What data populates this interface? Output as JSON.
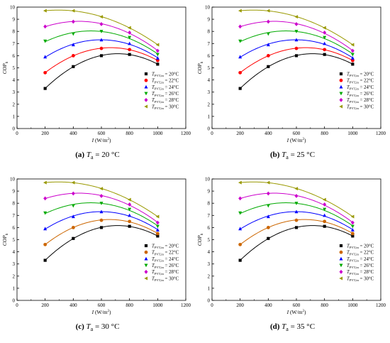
{
  "chart_data": [
    {
      "type": "scatter",
      "caption": {
        "label": "(a)",
        "var": "T",
        "sub": "a",
        "rest": " = 20 °C"
      },
      "xlabel": "I (W/m²)",
      "ylabel": "COP",
      "xlabel_parts": {
        "var": "I",
        "unit": " (W/m",
        "sup": "2",
        "close": ")"
      },
      "ylabel_parts": {
        "var": "COP",
        "sub": "h"
      },
      "xlim": [
        0,
        1200
      ],
      "ylim": [
        0,
        10
      ],
      "xticks": [
        0,
        200,
        400,
        600,
        800,
        1000,
        1200
      ],
      "yticks": [
        0,
        1,
        2,
        3,
        4,
        5,
        6,
        7,
        8,
        9,
        10
      ],
      "x": [
        200,
        400,
        600,
        800,
        1000
      ],
      "grid": false,
      "legend_position": "bottom-right",
      "series": [
        {
          "name": "T_PVT,in = 20°C",
          "sym": "T",
          "sub": "PVT,in",
          "rest": " = 20°C",
          "marker": "square",
          "color": "#000000",
          "values": [
            3.3,
            5.1,
            6.0,
            6.1,
            5.3
          ]
        },
        {
          "name": "T_PVT,in = 22°C",
          "sym": "T",
          "sub": "PVT,in",
          "rest": " = 22°C",
          "marker": "circle",
          "color": "#ff0000",
          "values": [
            4.6,
            6.0,
            6.6,
            6.5,
            5.6
          ]
        },
        {
          "name": "T_PVT,in = 24°C",
          "sym": "T",
          "sub": "PVT,in",
          "rest": " = 24°C",
          "marker": "triangle-up",
          "color": "#0000ff",
          "values": [
            5.9,
            6.9,
            7.3,
            7.0,
            5.8
          ]
        },
        {
          "name": "T_PVT,in = 26°C",
          "sym": "T",
          "sub": "PVT,in",
          "rest": " = 26°C",
          "marker": "triangle-down",
          "color": "#00aa00",
          "values": [
            7.2,
            7.8,
            8.0,
            7.5,
            6.1
          ]
        },
        {
          "name": "T_PVT,in = 28°C",
          "sym": "T",
          "sub": "PVT,in",
          "rest": " = 28°C",
          "marker": "diamond",
          "color": "#cc00cc",
          "values": [
            8.4,
            8.8,
            8.6,
            7.9,
            6.4
          ]
        },
        {
          "name": "T_PVT,in = 30°C",
          "sym": "T",
          "sub": "PVT,in",
          "rest": " = 30°C",
          "marker": "triangle-left",
          "color": "#999900",
          "values": [
            9.7,
            9.7,
            9.2,
            8.3,
            6.9
          ]
        }
      ]
    },
    {
      "type": "scatter",
      "caption": {
        "label": "(b)",
        "var": "T",
        "sub": "a",
        "rest": " = 25 °C"
      },
      "xlabel": "I (W/m²)",
      "ylabel": "COP",
      "xlabel_parts": {
        "var": "I",
        "unit": " (W/m",
        "sup": "2",
        "close": ")"
      },
      "ylabel_parts": {
        "var": "COP",
        "sub": "h"
      },
      "xlim": [
        0,
        1200
      ],
      "ylim": [
        0,
        10
      ],
      "xticks": [
        0,
        200,
        400,
        600,
        800,
        1000,
        1200
      ],
      "yticks": [
        0,
        1,
        2,
        3,
        4,
        5,
        6,
        7,
        8,
        9,
        10
      ],
      "x": [
        200,
        400,
        600,
        800,
        1000
      ],
      "grid": false,
      "legend_position": "bottom-right",
      "series": [
        {
          "name": "T_PVT,in = 20°C",
          "sym": "T",
          "sub": "PVT,in",
          "rest": " = 20°C",
          "marker": "square",
          "color": "#000000",
          "values": [
            3.3,
            5.1,
            6.0,
            6.1,
            5.3
          ]
        },
        {
          "name": "T_PVT,in = 22°C",
          "sym": "T",
          "sub": "PVT,in",
          "rest": " = 22°C",
          "marker": "circle",
          "color": "#ff0000",
          "values": [
            4.6,
            6.0,
            6.6,
            6.5,
            5.6
          ]
        },
        {
          "name": "T_PVT,in = 24°C",
          "sym": "T",
          "sub": "PVT,in",
          "rest": " = 24°C",
          "marker": "triangle-up",
          "color": "#0000ff",
          "values": [
            5.9,
            6.9,
            7.3,
            7.0,
            5.8
          ]
        },
        {
          "name": "T_PVT,in = 26°C",
          "sym": "T",
          "sub": "PVT,in",
          "rest": " = 26°C",
          "marker": "triangle-down",
          "color": "#00aa00",
          "values": [
            7.2,
            7.8,
            8.0,
            7.5,
            6.1
          ]
        },
        {
          "name": "T_PVT,in = 28°C",
          "sym": "T",
          "sub": "PVT,in",
          "rest": " = 28°C",
          "marker": "diamond",
          "color": "#cc00cc",
          "values": [
            8.4,
            8.8,
            8.6,
            7.9,
            6.4
          ]
        },
        {
          "name": "T_PVT,in = 30°C",
          "sym": "T",
          "sub": "PVT,in",
          "rest": " = 30°C",
          "marker": "triangle-left",
          "color": "#999900",
          "values": [
            9.7,
            9.7,
            9.2,
            8.3,
            6.9
          ]
        }
      ]
    },
    {
      "type": "scatter",
      "caption": {
        "label": "(c)",
        "var": "T",
        "sub": "a",
        "rest": " = 30 °C"
      },
      "xlabel": "I (W/m²)",
      "ylabel": "COP",
      "xlabel_parts": {
        "var": "I",
        "unit": " (W/m",
        "sup": "2",
        "close": ")"
      },
      "ylabel_parts": {
        "var": "COP",
        "sub": "h"
      },
      "xlim": [
        0,
        1200
      ],
      "ylim": [
        0,
        10
      ],
      "xticks": [
        0,
        200,
        400,
        600,
        800,
        1000,
        1200
      ],
      "yticks": [
        0,
        1,
        2,
        3,
        4,
        5,
        6,
        7,
        8,
        9,
        10
      ],
      "x": [
        200,
        400,
        600,
        800,
        1000
      ],
      "grid": false,
      "legend_position": "bottom-right",
      "series": [
        {
          "name": "T_PVT,in = 20°C",
          "sym": "T",
          "sub": "PVT,in",
          "rest": " = 20°C",
          "marker": "square",
          "color": "#000000",
          "values": [
            3.3,
            5.1,
            6.0,
            6.1,
            5.3
          ]
        },
        {
          "name": "T_PVT,in = 22°C",
          "sym": "T",
          "sub": "PVT,in",
          "rest": " = 22°C",
          "marker": "circle",
          "color": "#cc6600",
          "values": [
            4.6,
            6.0,
            6.6,
            6.5,
            5.5
          ]
        },
        {
          "name": "T_PVT,in = 24°C",
          "sym": "T",
          "sub": "PVT,in",
          "rest": " = 24°C",
          "marker": "triangle-up",
          "color": "#0000ff",
          "values": [
            5.9,
            6.9,
            7.3,
            7.0,
            5.8
          ]
        },
        {
          "name": "T_PVT,in = 26°C",
          "sym": "T",
          "sub": "PVT,in",
          "rest": " = 26°C",
          "marker": "triangle-down",
          "color": "#00aa00",
          "values": [
            7.2,
            7.8,
            8.0,
            7.5,
            6.1
          ]
        },
        {
          "name": "T_PVT,in = 28°C",
          "sym": "T",
          "sub": "PVT,in",
          "rest": " = 28°C",
          "marker": "diamond",
          "color": "#cc00cc",
          "values": [
            8.4,
            8.8,
            8.6,
            7.9,
            6.4
          ]
        },
        {
          "name": "T_PVT,in = 30°C",
          "sym": "T",
          "sub": "PVT,in",
          "rest": " = 30°C",
          "marker": "triangle-left",
          "color": "#999900",
          "values": [
            9.7,
            9.7,
            9.2,
            8.3,
            6.9
          ]
        }
      ]
    },
    {
      "type": "scatter",
      "caption": {
        "label": "(d)",
        "var": "T",
        "sub": "a",
        "rest": " = 35 °C"
      },
      "xlabel": "I (W/m²)",
      "ylabel": "COP",
      "xlabel_parts": {
        "var": "I",
        "unit": " (W/m",
        "sup": "2",
        "close": ")"
      },
      "ylabel_parts": {
        "var": "COP",
        "sub": "h"
      },
      "xlim": [
        0,
        1200
      ],
      "ylim": [
        0,
        10
      ],
      "xticks": [
        0,
        200,
        400,
        600,
        800,
        1000,
        1200
      ],
      "yticks": [
        0,
        1,
        2,
        3,
        4,
        5,
        6,
        7,
        8,
        9,
        10
      ],
      "x": [
        200,
        400,
        600,
        800,
        1000
      ],
      "grid": false,
      "legend_position": "bottom-right",
      "series": [
        {
          "name": "T_PVT,in = 20°C",
          "sym": "T",
          "sub": "PVT,in",
          "rest": " = 20°C",
          "marker": "square",
          "color": "#000000",
          "values": [
            3.3,
            5.1,
            6.0,
            6.1,
            5.3
          ]
        },
        {
          "name": "T_PVT,in = 22°C",
          "sym": "T",
          "sub": "PVT,in",
          "rest": " = 22°C",
          "marker": "circle",
          "color": "#cc6600",
          "values": [
            4.6,
            6.0,
            6.6,
            6.5,
            5.5
          ]
        },
        {
          "name": "T_PVT,in = 24°C",
          "sym": "T",
          "sub": "PVT,in",
          "rest": " = 24°C",
          "marker": "triangle-up",
          "color": "#0000ff",
          "values": [
            5.9,
            6.9,
            7.3,
            7.0,
            5.8
          ]
        },
        {
          "name": "T_PVT,in = 26°C",
          "sym": "T",
          "sub": "PVT,in",
          "rest": " = 26°C",
          "marker": "triangle-down",
          "color": "#00aa00",
          "values": [
            7.2,
            7.8,
            8.0,
            7.5,
            6.1
          ]
        },
        {
          "name": "T_PVT,in = 28°C",
          "sym": "T",
          "sub": "PVT,in",
          "rest": " = 28°C",
          "marker": "diamond",
          "color": "#cc00cc",
          "values": [
            8.4,
            8.8,
            8.6,
            7.9,
            6.4
          ]
        },
        {
          "name": "T_PVT,in = 30°C",
          "sym": "T",
          "sub": "PVT,in",
          "rest": " = 30°C",
          "marker": "triangle-left",
          "color": "#999900",
          "values": [
            9.7,
            9.7,
            9.2,
            8.3,
            6.9
          ]
        }
      ]
    }
  ]
}
